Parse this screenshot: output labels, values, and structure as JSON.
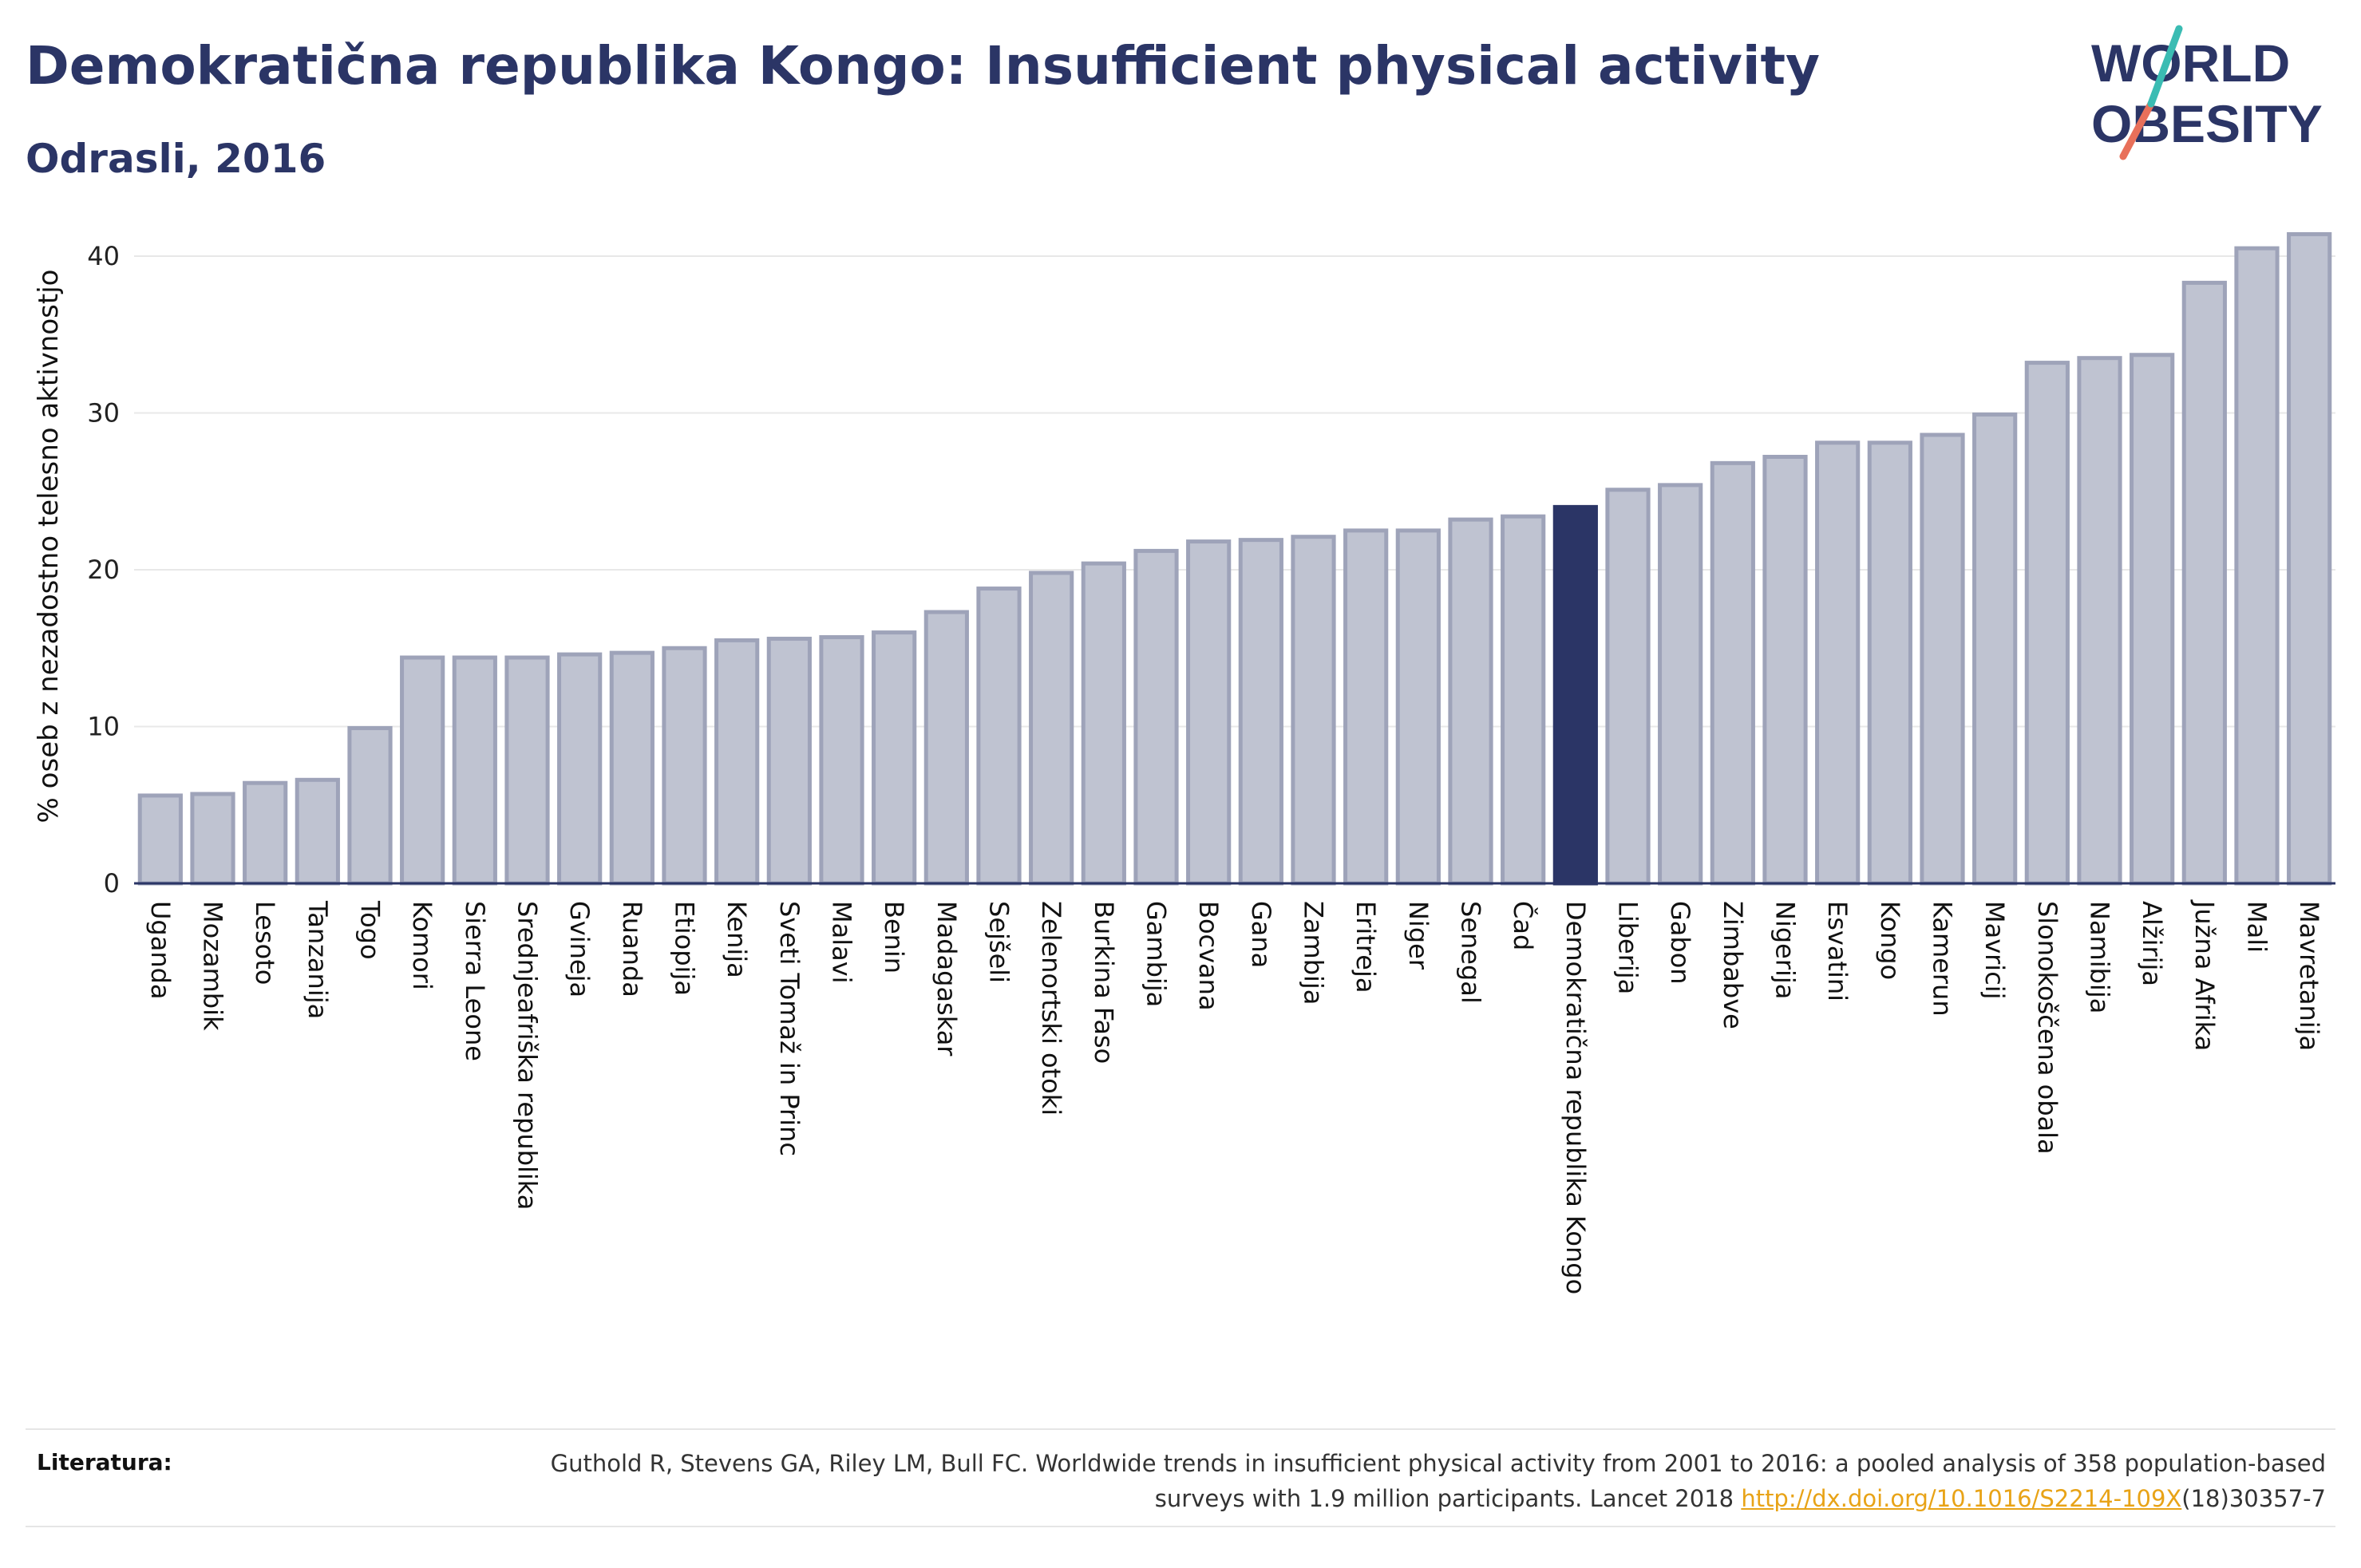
{
  "title": "Demokratična republika Kongo: Insufficient physical activity",
  "subtitle": "Odrasli, 2016",
  "logo": {
    "line1": "WORLD",
    "line2": "OBESITY"
  },
  "footer": {
    "label": "Literatura:",
    "text": "Guthold R, Stevens GA, Riley LM, Bull FC. Worldwide trends in insufficient physical activity from 2001 to 2016: a pooled analysis of 358 population-based surveys with 1.9 million participants. Lancet 2018 ",
    "link": "http://dx.doi.org/10.1016/S2214-109X",
    "suffix": "(18)30357-7"
  },
  "colors": {
    "bar": "#bfc3d1",
    "bar_border": "#9ea3b9",
    "highlight": "#2b3566",
    "text": "#2b3566"
  },
  "chart_data": {
    "type": "bar",
    "title": "Demokratična republika Kongo: Insufficient physical activity",
    "subtitle": "Odrasli, 2016",
    "ylabel": "% oseb z nezadostno telesno aktivnostjo",
    "xlabel": "",
    "ylim": [
      0,
      43
    ],
    "yticks": [
      0,
      10,
      20,
      30,
      40
    ],
    "grid": true,
    "highlight": "Demokratična republika Kongo",
    "categories": [
      "Uganda",
      "Mozambik",
      "Lesoto",
      "Tanzanija",
      "Togo",
      "Komori",
      "Sierra Leone",
      "Srednjeafriška republika",
      "Gvineja",
      "Ruanda",
      "Etiopija",
      "Kenija",
      "Sveti Tomaž in Princ",
      "Malavi",
      "Benin",
      "Madagaskar",
      "Sejšeli",
      "Zelenortski otoki",
      "Burkina Faso",
      "Gambija",
      "Bocvana",
      "Gana",
      "Zambija",
      "Eritreja",
      "Niger",
      "Senegal",
      "Čad",
      "Demokratična republika Kongo",
      "Liberija",
      "Gabon",
      "Zimbabve",
      "Nigerija",
      "Esvatini",
      "Kongo",
      "Kamerun",
      "Mavricij",
      "Slonokoščena obala",
      "Namibija",
      "Alžirija",
      "Južna Afrika",
      "Mali",
      "Mavretanija"
    ],
    "values": [
      5.6,
      5.7,
      6.4,
      6.6,
      9.9,
      14.4,
      14.4,
      14.4,
      14.6,
      14.7,
      15.0,
      15.5,
      15.6,
      15.7,
      16.0,
      17.3,
      18.8,
      19.8,
      20.4,
      21.2,
      21.8,
      21.9,
      22.1,
      22.5,
      22.5,
      23.2,
      23.4,
      24.0,
      25.1,
      25.4,
      26.8,
      27.2,
      28.1,
      28.1,
      28.6,
      29.9,
      33.2,
      33.5,
      33.7,
      38.3,
      40.5,
      41.4
    ]
  }
}
